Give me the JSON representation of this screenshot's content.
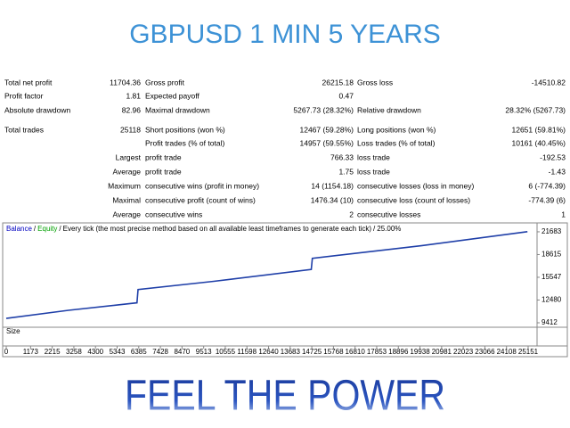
{
  "header": {
    "title": "GBPUSD 1 MIN 5 YEARS"
  },
  "stats": {
    "rows": [
      {
        "left": {
          "label": "Total net profit",
          "value": "11704.36"
        },
        "middle": {
          "label": "Gross profit",
          "value": "26215.18"
        },
        "right": {
          "label": "Gross loss",
          "value": "-14510.82"
        }
      },
      {
        "left": {
          "label": "Profit factor",
          "value": "1.81"
        },
        "middle": {
          "label": "Expected payoff",
          "value": "0.47"
        }
      },
      {
        "left": {
          "label": "Absolute drawdown",
          "value": "82.96"
        },
        "middle": {
          "label": "Maximal drawdown",
          "value": "5267.73 (28.32%)"
        },
        "right": {
          "label": "Relative drawdown",
          "value": "28.32% (5267.73)"
        }
      },
      {
        "left": {
          "label": "Total trades",
          "value": "25118"
        },
        "middle": {
          "label": "Short positions (won %)",
          "value": "12467 (59.28%)"
        },
        "right": {
          "label": "Long positions (won %)",
          "value": "12651 (59.81%)"
        }
      },
      {
        "middle": {
          "label": "Profit trades (% of total)",
          "value": "14957 (59.55%)"
        },
        "right": {
          "label": "Loss trades (% of total)",
          "value": "10161 (40.45%)"
        }
      },
      {
        "left": {
          "label": "Largest"
        },
        "middle": {
          "label": "profit trade",
          "value": "766.33"
        },
        "right": {
          "label": "loss trade",
          "value": "-192.53"
        }
      },
      {
        "left": {
          "label": "Average"
        },
        "middle": {
          "label": "profit trade",
          "value": "1.75"
        },
        "right": {
          "label": "loss trade",
          "value": "-1.43"
        }
      },
      {
        "left": {
          "label": "Maximum"
        },
        "middle": {
          "label": "consecutive wins (profit in money)",
          "value": "14 (1154.18)"
        },
        "right": {
          "label": "consecutive losses (loss in money)",
          "value": "6 (-774.39)"
        }
      },
      {
        "left": {
          "label": "Maximal"
        },
        "middle": {
          "label": "consecutive profit (count of wins)",
          "value": "1476.34 (10)"
        },
        "right": {
          "label": "consecutive loss (count of losses)",
          "value": "-774.39 (6)"
        }
      },
      {
        "left": {
          "label": "Average"
        },
        "middle": {
          "label": "consecutive wins",
          "value": "2"
        },
        "right": {
          "label": "consecutive losses",
          "value": "1"
        }
      }
    ]
  },
  "chart": {
    "type": "line",
    "legend": [
      "Balance",
      "Equity",
      "Every tick (the most precise method based on all available least timeframes to generate each tick)",
      "25.00%"
    ],
    "legend_colors": [
      "#0000c0",
      "#00a000",
      "#000000",
      "#000000"
    ],
    "separator": "/",
    "balance": {
      "name": "Balance",
      "color": "#1f3fa8",
      "x": [
        0,
        3000,
        6300,
        6350,
        10000,
        14700,
        14750,
        20000,
        25118
      ],
      "values": [
        10000,
        11100,
        12100,
        13900,
        15000,
        16600,
        18100,
        19800,
        21704
      ]
    },
    "xlim": [
      -130,
      25580
    ],
    "ylim": [
      8930,
      22760
    ],
    "xticks": [
      0,
      1173,
      2215,
      3258,
      4300,
      5343,
      6385,
      7428,
      8470,
      9513,
      10555,
      11598,
      12640,
      13683,
      14725,
      15768,
      16810,
      17853,
      18896,
      19938,
      20981,
      22023,
      23066,
      24108,
      25151
    ],
    "yticks": [
      9412,
      12480,
      15547,
      18615,
      21683
    ],
    "size_label": "Size"
  },
  "footer": {
    "title": "FEEL THE POWER"
  }
}
